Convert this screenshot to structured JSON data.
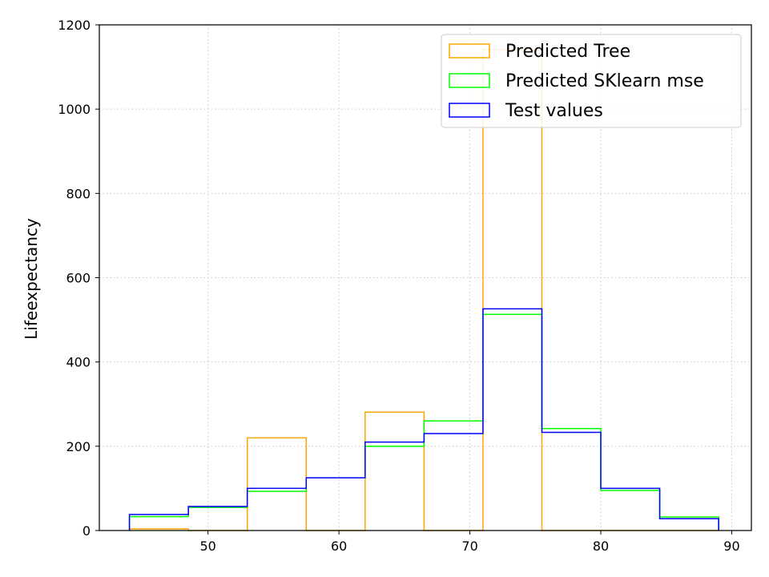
{
  "chart_data": {
    "type": "histogram-step",
    "title": "",
    "xlabel": "",
    "ylabel": "Lifeexpectancy",
    "xlim": [
      41.7,
      91.5
    ],
    "ylim": [
      0,
      1200
    ],
    "xticks": [
      50,
      60,
      70,
      80,
      90
    ],
    "yticks": [
      0,
      200,
      400,
      600,
      800,
      1000,
      1200
    ],
    "grid": true,
    "grid_style": "dotted",
    "legend_position": "top-right",
    "bin_edges": [
      44.0,
      48.5,
      53.0,
      57.5,
      62.0,
      66.5,
      71.0,
      75.5,
      80.0,
      84.5,
      89.0
    ],
    "series": [
      {
        "name": "Predicted Tree",
        "color": "#ffa500",
        "counts": [
          4,
          0,
          220,
          0,
          281,
          0,
          1141,
          0,
          0,
          0
        ]
      },
      {
        "name": "Predicted SKlearn mse",
        "color": "#00ff00",
        "counts": [
          33,
          55,
          93,
          125,
          200,
          260,
          513,
          242,
          95,
          32
        ]
      },
      {
        "name": "Test values",
        "color": "#0000ff",
        "counts": [
          38,
          57,
          100,
          125,
          210,
          230,
          526,
          233,
          100,
          28
        ]
      }
    ]
  }
}
